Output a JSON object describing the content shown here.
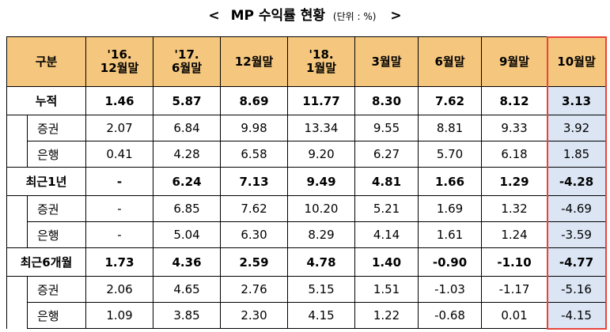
{
  "title": {
    "open": "<",
    "text": "MP 수익률 현황",
    "unit": "(단위 : %)",
    "close": ">"
  },
  "table": {
    "headers": [
      "구분",
      "'16. 12월말",
      "'17. 6월말",
      "12월말",
      "'18. 1월말",
      "3월말",
      "6월말",
      "9월말",
      "10월말"
    ],
    "groups": [
      {
        "label": "누적",
        "values": [
          "1.46",
          "5.87",
          "8.69",
          "11.77",
          "8.30",
          "7.62",
          "8.12",
          "3.13"
        ],
        "subs": [
          {
            "label": "증권",
            "values": [
              "2.07",
              "6.84",
              "9.98",
              "13.34",
              "9.55",
              "8.81",
              "9.33",
              "3.92"
            ]
          },
          {
            "label": "은행",
            "values": [
              "0.41",
              "4.28",
              "6.58",
              "9.20",
              "6.27",
              "5.70",
              "6.18",
              "1.85"
            ]
          }
        ]
      },
      {
        "label": "최근1년",
        "values": [
          "-",
          "6.24",
          "7.13",
          "9.49",
          "4.81",
          "1.66",
          "1.29",
          "-4.28"
        ],
        "subs": [
          {
            "label": "증권",
            "values": [
              "-",
              "6.85",
              "7.62",
              "10.20",
              "5.21",
              "1.69",
              "1.32",
              "-4.69"
            ]
          },
          {
            "label": "은행",
            "values": [
              "-",
              "5.04",
              "6.30",
              "8.29",
              "4.14",
              "1.61",
              "1.24",
              "-3.59"
            ]
          }
        ]
      },
      {
        "label": "최근6개월",
        "values": [
          "1.73",
          "4.36",
          "2.59",
          "4.78",
          "1.40",
          "-0.90",
          "-1.10",
          "-4.77"
        ],
        "subs": [
          {
            "label": "증권",
            "values": [
              "2.06",
              "4.65",
              "2.76",
              "5.15",
              "1.51",
              "-1.03",
              "-1.17",
              "-5.16"
            ]
          },
          {
            "label": "은행",
            "values": [
              "1.09",
              "3.85",
              "2.30",
              "4.15",
              "1.22",
              "-0.68",
              "0.01",
              "-4.15"
            ]
          }
        ]
      }
    ]
  },
  "highlight_color": "#e8443a"
}
